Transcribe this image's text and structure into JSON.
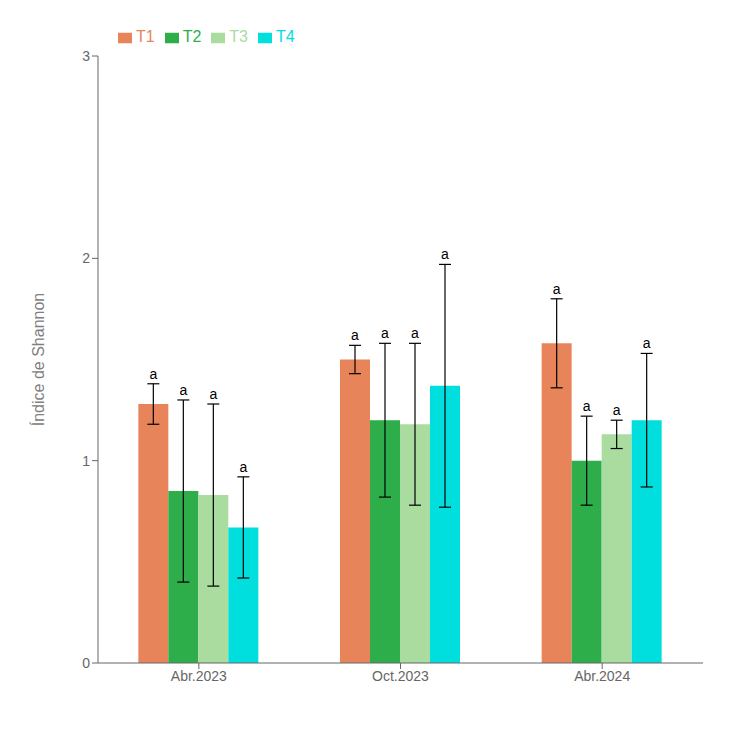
{
  "chart_data": {
    "type": "bar",
    "categories": [
      "Abr.2023",
      "Oct.2023",
      "Abr.2024"
    ],
    "series": [
      {
        "name": "T1",
        "color": "#E8845A",
        "values": [
          1.28,
          1.5,
          1.58
        ],
        "errors": [
          0.1,
          0.07,
          0.22
        ],
        "annotations": [
          "a",
          "a",
          "a"
        ]
      },
      {
        "name": "T2",
        "color": "#2EAD4B",
        "values": [
          0.85,
          1.2,
          1.0
        ],
        "errors": [
          0.45,
          0.38,
          0.22
        ],
        "annotations": [
          "a",
          "a",
          "a"
        ]
      },
      {
        "name": "T3",
        "color": "#AADCA0",
        "values": [
          0.83,
          1.18,
          1.13
        ],
        "errors": [
          0.45,
          0.4,
          0.07
        ],
        "annotations": [
          "a",
          "a",
          "a"
        ]
      },
      {
        "name": "T4",
        "color": "#00DEDE",
        "values": [
          0.67,
          1.37,
          1.2
        ],
        "errors": [
          0.25,
          0.6,
          0.33
        ],
        "annotations": [
          "a",
          "a",
          "a"
        ]
      }
    ],
    "ylabel": "Índice de Shannon",
    "ylim": [
      0,
      3
    ],
    "yticks": [
      0,
      1,
      2,
      3
    ],
    "grid": false,
    "legend": "upper left"
  }
}
